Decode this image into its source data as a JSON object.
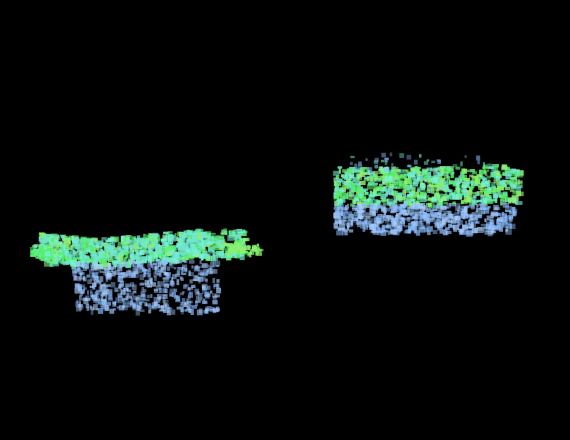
{
  "scene": {
    "background_color": "#000000",
    "palette": {
      "green": "#57ef6b",
      "lime": "#8ff06d",
      "cyan": "#6fe6cf",
      "blue": "#8dbdff",
      "light_blue": "#a9cfff",
      "aqua": "#76f3d6"
    },
    "clusters": [
      {
        "name": "left-cluster"
      },
      {
        "name": "right-cluster"
      }
    ]
  }
}
